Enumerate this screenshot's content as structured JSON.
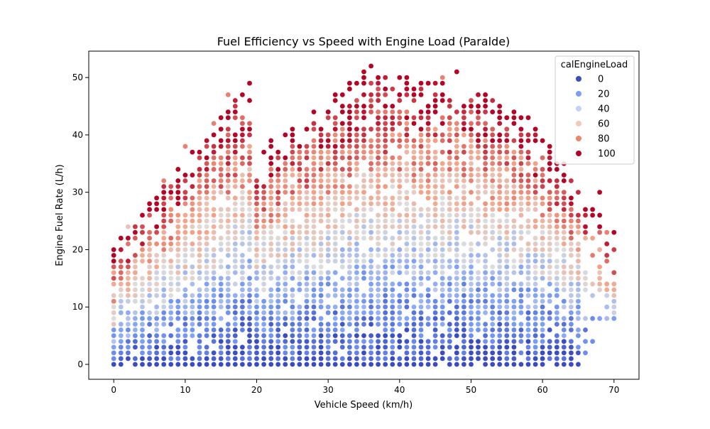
{
  "chart_data": {
    "type": "scatter",
    "title": "Fuel Efficiency vs Speed with Engine Load (Paralde)",
    "xlabel": "Vehicle Speed (km/h)",
    "ylabel": "Engine Fuel Rate (L/h)",
    "xlim": [
      -3.5,
      73.5
    ],
    "ylim": [
      -2.6,
      54.6
    ],
    "xticks": [
      0,
      10,
      20,
      30,
      40,
      50,
      60,
      70
    ],
    "yticks": [
      0,
      10,
      20,
      30,
      40,
      50
    ],
    "hue_variable": "calEngineLoad",
    "colormap": "coolwarm",
    "grid": false,
    "legend": {
      "title": "calEngineLoad",
      "placement": "top-right",
      "entries": [
        {
          "label": "0",
          "color": "#3b4cc0"
        },
        {
          "label": "20",
          "color": "#7b9ff9"
        },
        {
          "label": "40",
          "color": "#c0d4f5"
        },
        {
          "label": "60",
          "color": "#f2cbb7"
        },
        {
          "label": "80",
          "color": "#ee8468"
        },
        {
          "label": "100",
          "color": "#b40426"
        }
      ]
    },
    "points_shown": [
      [
        0,
        0,
        0
      ],
      [
        0,
        2,
        20
      ],
      [
        0,
        4,
        40
      ],
      [
        0,
        7,
        60
      ],
      [
        0,
        11,
        80
      ],
      [
        0,
        16,
        60
      ],
      [
        0,
        20,
        60
      ],
      [
        2,
        24,
        60
      ],
      [
        5,
        27,
        60
      ],
      [
        7,
        32,
        80
      ],
      [
        10,
        38,
        80
      ],
      [
        13,
        39,
        80
      ],
      [
        14,
        42,
        80
      ],
      [
        16,
        47,
        80
      ],
      [
        18,
        43,
        80
      ],
      [
        19,
        49,
        80
      ],
      [
        19,
        46,
        100
      ],
      [
        30,
        44,
        100
      ],
      [
        33,
        49,
        100
      ],
      [
        35,
        51,
        100
      ],
      [
        36,
        52,
        100
      ],
      [
        38,
        48,
        100
      ],
      [
        42,
        48,
        100
      ],
      [
        44,
        49,
        100
      ],
      [
        46,
        50,
        80
      ],
      [
        48,
        51,
        100
      ],
      [
        52,
        40,
        100
      ],
      [
        55,
        43,
        100
      ],
      [
        57,
        43,
        100
      ],
      [
        59,
        33,
        100
      ],
      [
        62,
        34,
        100
      ],
      [
        66,
        27,
        80
      ],
      [
        67,
        26,
        100
      ],
      [
        68,
        30,
        100
      ],
      [
        68,
        24,
        100
      ],
      [
        69,
        23,
        80
      ],
      [
        70,
        16,
        60
      ],
      [
        68,
        16,
        60
      ],
      [
        67,
        12,
        40
      ],
      [
        66,
        2,
        20
      ],
      [
        67,
        4,
        20
      ],
      [
        65,
        6,
        20
      ],
      [
        64,
        0,
        0
      ],
      [
        65,
        0,
        0
      ],
      [
        20,
        0,
        0
      ],
      [
        40,
        0,
        0
      ],
      [
        60,
        0,
        0
      ]
    ]
  }
}
